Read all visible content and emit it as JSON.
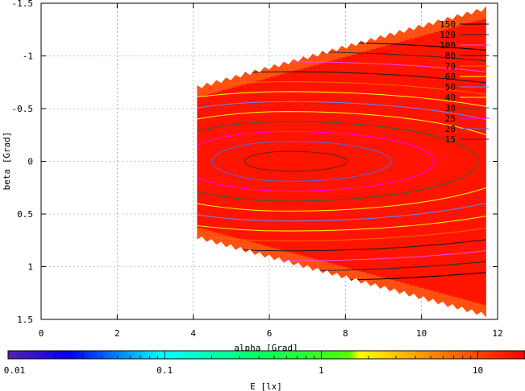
{
  "chart_data": {
    "type": "heatmap",
    "xlabel": "alpha [Grad]",
    "ylabel": "beta [Grad]",
    "xlim": [
      0,
      12
    ],
    "ylim": [
      1.5,
      -1.5
    ],
    "y_inverted": true,
    "x_ticks": [
      "0",
      "2",
      "4",
      "6",
      "8",
      "10",
      "12"
    ],
    "x_tick_values": [
      0,
      2,
      4,
      6,
      8,
      10,
      12
    ],
    "y_ticks": [
      "-1.5",
      "-1",
      "-0.5",
      "0",
      "0.5",
      "1",
      "1.5"
    ],
    "y_tick_values": [
      -1.5,
      -1,
      -0.5,
      0,
      0.5,
      1,
      1.5
    ],
    "grid": true,
    "legend_position": "top-right",
    "contour_levels": [
      {
        "label": "150",
        "value": 150,
        "color": "#000000"
      },
      {
        "label": "120",
        "value": 120,
        "color": "#2a2a2a"
      },
      {
        "label": "100",
        "value": 100,
        "color": "#ff44ff"
      },
      {
        "label": "80",
        "value": 80,
        "color": "#1a1a1a"
      },
      {
        "label": "70",
        "value": 70,
        "color": "#ff6600"
      },
      {
        "label": "60",
        "value": 60,
        "color": "#ffff00"
      },
      {
        "label": "50",
        "value": 50,
        "color": "#6688ff"
      },
      {
        "label": "40",
        "value": 40,
        "color": "#ffff00"
      },
      {
        "label": "30",
        "value": 30,
        "color": "#226644"
      },
      {
        "label": "25",
        "value": 25,
        "color": "#ff00ff"
      },
      {
        "label": "20",
        "value": 20,
        "color": "#5566dd"
      },
      {
        "label": "15",
        "value": 15,
        "color": "#662222"
      }
    ],
    "region": {
      "x_min": 4.1,
      "x_max": 11.7,
      "y_at_xmin": [
        -0.72,
        0.74
      ],
      "y_at_xmax": [
        -1.47,
        1.48
      ]
    },
    "peak": {
      "alpha": 6.5,
      "beta": 0.0
    },
    "colorbar": {
      "label": "E [lx]",
      "scale": "log",
      "range": [
        0.01,
        20
      ],
      "ticks": [
        "0.01",
        "0.1",
        "1",
        "10"
      ],
      "tick_values": [
        0.01,
        0.1,
        1,
        10
      ]
    }
  }
}
